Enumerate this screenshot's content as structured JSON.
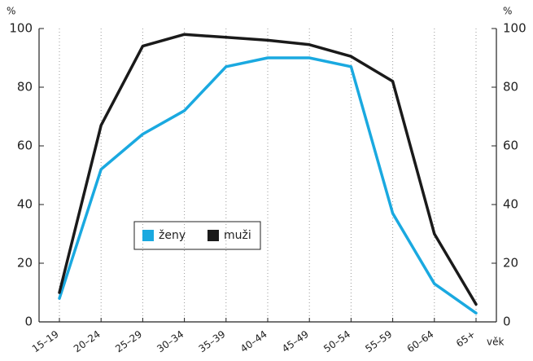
{
  "chart_data": {
    "type": "line",
    "ylabel": "%",
    "y2label": "%",
    "xlabel": "věk",
    "categories": [
      "15–19",
      "20–24",
      "25–29",
      "30–34",
      "35–39",
      "40–44",
      "45–49",
      "50–54",
      "55–59",
      "60–64",
      "65+"
    ],
    "series": [
      {
        "name": "ženy",
        "color": "#1aa9e0",
        "values": [
          8,
          52,
          64,
          72,
          87,
          90,
          90,
          87,
          37,
          13,
          3
        ]
      },
      {
        "name": "muži",
        "color": "#1a1a1a",
        "values": [
          10,
          67,
          94,
          98,
          97,
          96,
          94.5,
          90.5,
          82,
          30,
          6
        ]
      }
    ],
    "ylim": [
      0,
      100
    ],
    "yticks": [
      0,
      20,
      40,
      60,
      80,
      100
    ],
    "y2lim": [
      0,
      100
    ],
    "y2ticks": [
      0,
      20,
      40,
      60,
      80,
      100
    ],
    "grid": true
  }
}
